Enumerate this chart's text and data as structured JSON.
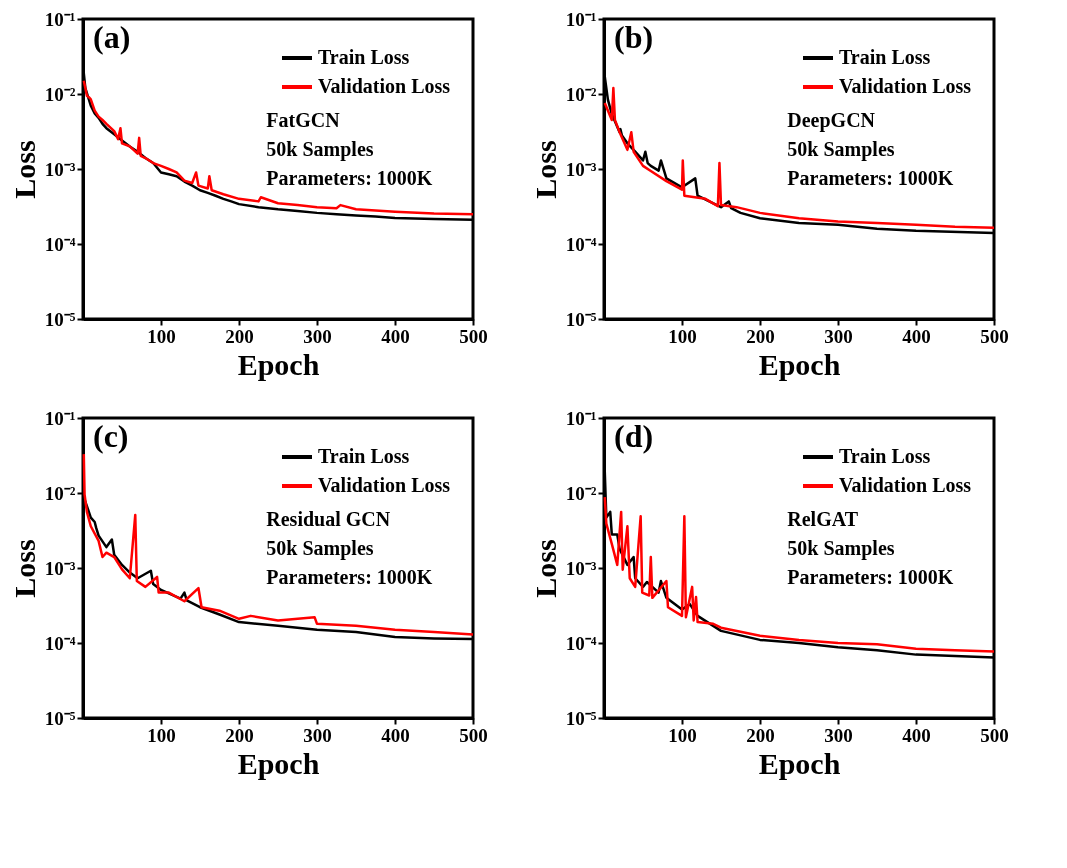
{
  "chart_data": [
    {
      "type": "line",
      "xlabel": "Epoch",
      "ylabel": "Loss",
      "log": "y",
      "grid": false,
      "legend": "top right",
      "xlim": [
        0,
        500
      ],
      "xticks": [
        100,
        200,
        300,
        400,
        500
      ],
      "ylim": [
        1e-05,
        0.1
      ],
      "yticks": [
        {
          "value": 1e-05,
          "label": "10⁻⁵"
        },
        {
          "value": 0.0001,
          "label": "10⁻⁴"
        },
        {
          "value": 0.001,
          "label": "10⁻³"
        },
        {
          "value": 0.01,
          "label": "10⁻²"
        },
        {
          "value": 0.1,
          "label": "10⁻¹"
        }
      ],
      "annotations": [
        "(a)",
        "FatGCN",
        "50k Samples",
        "Parameters: 1000K"
      ],
      "series": [
        {
          "name": "Train Loss",
          "color": "#000000",
          "x": [
            1,
            3,
            6,
            10,
            15,
            20,
            25,
            30,
            40,
            50,
            60,
            70,
            80,
            90,
            100,
            110,
            120,
            130,
            140,
            150,
            160,
            170,
            180,
            190,
            200,
            225,
            250,
            275,
            300,
            325,
            350,
            375,
            400,
            450,
            500
          ],
          "values": [
            0.019,
            0.012,
            0.0095,
            0.007,
            0.0055,
            0.0048,
            0.004,
            0.0035,
            0.0029,
            0.0024,
            0.002,
            0.0017,
            0.0014,
            0.0012,
            0.0009,
            0.00085,
            0.0008,
            0.00068,
            0.0006,
            0.00052,
            0.00048,
            0.00044,
            0.0004,
            0.00037,
            0.00034,
            0.00031,
            0.00029,
            0.000275,
            0.00026,
            0.00025,
            0.00024,
            0.000232,
            0.000222,
            0.000215,
            0.00021
          ]
        },
        {
          "name": "Validation Loss",
          "color": "#ff0000",
          "x": [
            1,
            3,
            5,
            8,
            10,
            15,
            20,
            25,
            30,
            40,
            45,
            48,
            50,
            60,
            70,
            72,
            74,
            80,
            90,
            100,
            110,
            120,
            130,
            140,
            145,
            148,
            160,
            162,
            165,
            180,
            200,
            225,
            228,
            250,
            275,
            300,
            325,
            330,
            350,
            400,
            450,
            500
          ],
          "values": [
            0.015,
            0.012,
            0.0095,
            0.009,
            0.0085,
            0.006,
            0.005,
            0.0045,
            0.004,
            0.0032,
            0.0025,
            0.0035,
            0.0022,
            0.002,
            0.0016,
            0.0026,
            0.0015,
            0.0014,
            0.0012,
            0.0011,
            0.001,
            0.0009,
            0.0007,
            0.00065,
            0.0009,
            0.0006,
            0.00055,
            0.0008,
            0.00052,
            0.00046,
            0.0004,
            0.00037,
            0.00042,
            0.00035,
            0.00033,
            0.00031,
            0.0003,
            0.00033,
            0.00029,
            0.00027,
            0.000255,
            0.00025
          ]
        }
      ]
    },
    {
      "type": "line",
      "xlabel": "Epoch",
      "ylabel": "Loss",
      "log": "y",
      "grid": false,
      "legend": "top right",
      "xlim": [
        0,
        500
      ],
      "xticks": [
        100,
        200,
        300,
        400,
        500
      ],
      "ylim": [
        1e-05,
        0.1
      ],
      "yticks": [
        {
          "value": 1e-05,
          "label": "10⁻⁵"
        },
        {
          "value": 0.0001,
          "label": "10⁻⁴"
        },
        {
          "value": 0.001,
          "label": "10⁻³"
        },
        {
          "value": 0.01,
          "label": "10⁻²"
        },
        {
          "value": 0.1,
          "label": "10⁻¹"
        }
      ],
      "annotations": [
        "(b)",
        "DeepGCN",
        "50k Samples",
        "Parameters: 1000K"
      ],
      "series": [
        {
          "name": "Train Loss",
          "color": "#000000",
          "x": [
            1,
            5,
            10,
            20,
            21,
            23,
            30,
            40,
            50,
            53,
            56,
            60,
            70,
            73,
            80,
            100,
            117,
            120,
            150,
            160,
            163,
            175,
            200,
            250,
            300,
            350,
            400,
            500
          ],
          "values": [
            0.017,
            0.0084,
            0.0054,
            0.0031,
            0.0034,
            0.0028,
            0.0022,
            0.0017,
            0.0013,
            0.0017,
            0.0012,
            0.0011,
            0.00095,
            0.0013,
            0.00075,
            0.00057,
            0.00075,
            0.00044,
            0.00031,
            0.00037,
            0.0003,
            0.00026,
            0.00022,
            0.00019,
            0.00018,
            0.00016,
            0.00015,
            0.00014
          ]
        },
        {
          "name": "Validation Loss",
          "color": "#ff0000",
          "x": [
            1,
            10,
            12,
            14,
            20,
            30,
            35,
            38,
            50,
            60,
            80,
            100,
            101,
            103,
            130,
            146,
            148,
            150,
            170,
            200,
            250,
            300,
            350,
            400,
            450,
            500
          ],
          "values": [
            0.0076,
            0.0045,
            0.012,
            0.0045,
            0.0031,
            0.0018,
            0.0031,
            0.0017,
            0.0011,
            0.00094,
            0.00069,
            0.00053,
            0.0013,
            0.00044,
            0.0004,
            0.00032,
            0.0012,
            0.00033,
            0.00031,
            0.00026,
            0.00022,
            0.0002,
            0.00019,
            0.00018,
            0.00017,
            0.000165
          ]
        }
      ]
    },
    {
      "type": "line",
      "xlabel": "Epoch",
      "ylabel": "Loss",
      "log": "y",
      "grid": false,
      "legend": "top right",
      "xlim": [
        0,
        500
      ],
      "xticks": [
        100,
        200,
        300,
        400,
        500
      ],
      "ylim": [
        1e-05,
        0.1
      ],
      "yticks": [
        {
          "value": 1e-05,
          "label": "10⁻⁵"
        },
        {
          "value": 0.0001,
          "label": "10⁻⁴"
        },
        {
          "value": 0.001,
          "label": "10⁻³"
        },
        {
          "value": 0.01,
          "label": "10⁻²"
        },
        {
          "value": 0.1,
          "label": "10⁻¹"
        }
      ],
      "annotations": [
        "(c)",
        "Residual GCN",
        "50k Samples",
        "Parameters: 1000K"
      ],
      "series": [
        {
          "name": "Train Loss",
          "color": "#000000",
          "x": [
            1,
            5,
            10,
            15,
            17,
            20,
            30,
            37,
            40,
            50,
            60,
            70,
            87,
            90,
            100,
            125,
            130,
            133,
            150,
            175,
            200,
            250,
            300,
            350,
            400,
            450,
            500
          ],
          "values": [
            0.0088,
            0.0067,
            0.0047,
            0.0041,
            0.0034,
            0.0027,
            0.0019,
            0.0024,
            0.0015,
            0.0011,
            0.00087,
            0.00073,
            0.00092,
            0.00061,
            0.00051,
            0.00039,
            0.00047,
            0.00037,
            0.0003,
            0.00024,
            0.00019,
            0.00017,
            0.00015,
            0.00014,
            0.00012,
            0.000115,
            0.000113
          ]
        },
        {
          "name": "Validation Loss",
          "color": "#ff0000",
          "x": [
            1,
            2,
            5,
            10,
            20,
            25,
            30,
            40,
            50,
            60,
            67,
            69,
            80,
            95,
            97,
            110,
            130,
            148,
            152,
            175,
            200,
            215,
            250,
            297,
            300,
            350,
            400,
            450,
            500
          ],
          "values": [
            0.033,
            0.0096,
            0.0056,
            0.0036,
            0.0023,
            0.0014,
            0.0016,
            0.0014,
            0.00096,
            0.00073,
            0.0051,
            0.00067,
            0.00056,
            0.00076,
            0.00047,
            0.00047,
            0.00036,
            0.00054,
            0.0003,
            0.00027,
            0.00021,
            0.00023,
            0.0002,
            0.00022,
            0.00018,
            0.00017,
            0.00015,
            0.00014,
            0.00013
          ]
        }
      ]
    },
    {
      "type": "line",
      "xlabel": "Epoch",
      "ylabel": "Loss",
      "log": "y",
      "grid": false,
      "legend": "top right",
      "xlim": [
        0,
        500
      ],
      "xticks": [
        100,
        200,
        300,
        400,
        500
      ],
      "ylim": [
        1e-05,
        0.1
      ],
      "yticks": [
        {
          "value": 1e-05,
          "label": "10⁻⁵"
        },
        {
          "value": 0.0001,
          "label": "10⁻⁴"
        },
        {
          "value": 0.001,
          "label": "10⁻³"
        },
        {
          "value": 0.01,
          "label": "10⁻²"
        },
        {
          "value": 0.1,
          "label": "10⁻¹"
        }
      ],
      "annotations": [
        "(d)",
        "RelGAT",
        "50k Samples",
        "Parameters: 1000K"
      ],
      "series": [
        {
          "name": "Train Loss",
          "color": "#000000",
          "x": [
            1,
            3,
            8,
            10,
            17,
            20,
            30,
            38,
            40,
            50,
            55,
            70,
            73,
            80,
            100,
            110,
            120,
            150,
            200,
            250,
            300,
            350,
            400,
            450,
            500
          ],
          "values": [
            0.019,
            0.0047,
            0.0056,
            0.0028,
            0.0028,
            0.0018,
            0.0011,
            0.0014,
            0.00073,
            0.00056,
            0.00065,
            0.00047,
            0.00067,
            0.0004,
            0.00028,
            0.00033,
            0.00023,
            0.000145,
            0.00011,
            0.0001,
            8.8e-05,
            8e-05,
            7e-05,
            6.7e-05,
            6.4e-05
          ]
        },
        {
          "name": "Validation Loss",
          "color": "#ff0000",
          "x": [
            1,
            3,
            10,
            17,
            22,
            24,
            30,
            33,
            40,
            47,
            49,
            58,
            60,
            62,
            80,
            82,
            100,
            103,
            105,
            113,
            115,
            118,
            120,
            140,
            150,
            200,
            250,
            300,
            350,
            400,
            450,
            500
          ],
          "values": [
            0.0088,
            0.0039,
            0.0021,
            0.0011,
            0.0056,
            0.00095,
            0.0036,
            0.00073,
            0.00056,
            0.0049,
            0.00047,
            0.00043,
            0.0014,
            0.0004,
            0.00067,
            0.0003,
            0.00023,
            0.0049,
            0.00022,
            0.00056,
            0.0002,
            0.00041,
            0.00019,
            0.00018,
            0.00016,
            0.000125,
            0.00011,
            0.0001,
            9.6e-05,
            8.4e-05,
            8e-05,
            7.7e-05
          ]
        }
      ]
    }
  ]
}
